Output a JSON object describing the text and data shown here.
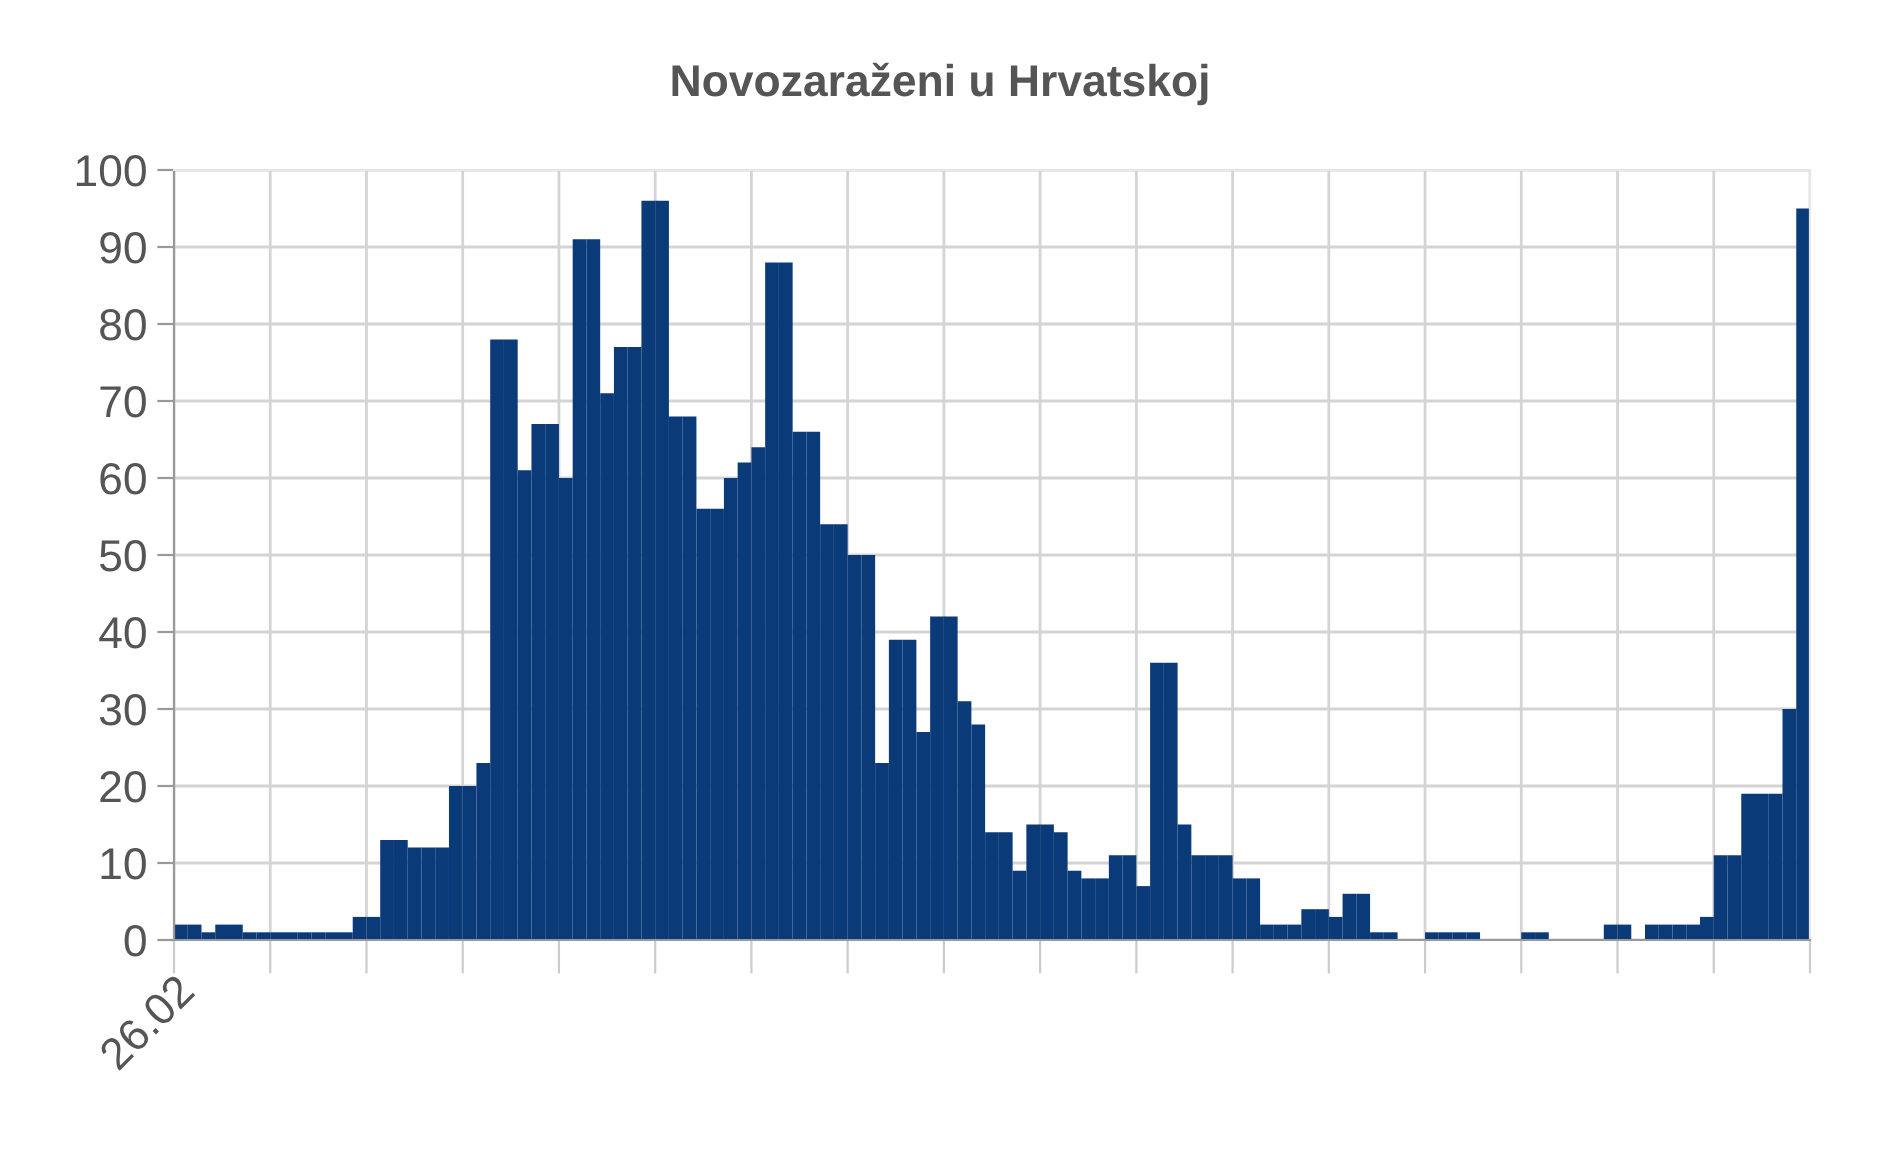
{
  "chart_data": {
    "type": "bar",
    "title": "Novozaraženi u Hrvatskoj",
    "categories": [
      "26.02",
      null,
      null,
      null,
      null,
      null,
      null,
      null,
      null,
      null,
      null,
      null,
      null,
      null,
      null,
      null,
      null,
      null,
      null,
      null,
      null,
      null,
      null,
      null,
      null,
      null,
      null,
      null,
      null,
      null,
      null,
      null,
      null,
      null,
      null,
      null,
      null,
      null,
      null,
      null,
      null,
      null,
      null,
      null,
      null,
      null,
      null,
      null,
      null,
      null,
      null,
      null,
      null,
      null,
      null,
      null,
      null,
      null,
      null,
      null,
      null,
      null,
      null,
      null,
      null,
      null,
      null,
      null,
      null,
      null,
      null,
      null,
      null,
      null,
      null,
      null,
      null,
      null,
      null,
      null,
      null,
      null,
      null,
      null,
      null,
      null,
      null,
      null,
      null,
      null,
      null,
      null,
      null,
      null,
      null,
      null,
      null,
      null,
      null,
      null,
      null,
      null,
      null,
      null,
      null,
      null,
      null,
      null,
      null,
      null,
      null,
      null,
      null,
      null,
      null,
      null,
      null,
      null,
      null
    ],
    "values": [
      2,
      2,
      1,
      2,
      2,
      1,
      1,
      1,
      1,
      1,
      1,
      1,
      1,
      3,
      3,
      13,
      13,
      12,
      12,
      12,
      20,
      20,
      23,
      78,
      78,
      61,
      67,
      67,
      60,
      91,
      91,
      71,
      77,
      77,
      96,
      96,
      68,
      68,
      56,
      56,
      60,
      62,
      64,
      88,
      88,
      66,
      66,
      54,
      54,
      50,
      50,
      23,
      39,
      39,
      27,
      42,
      42,
      31,
      28,
      14,
      14,
      9,
      15,
      15,
      14,
      9,
      8,
      8,
      11,
      11,
      7,
      36,
      36,
      15,
      11,
      11,
      11,
      8,
      8,
      2,
      2,
      2,
      4,
      4,
      3,
      6,
      6,
      1,
      1,
      0,
      0,
      1,
      1,
      1,
      1,
      0,
      0,
      0,
      1,
      1,
      0,
      0,
      0,
      0,
      2,
      2,
      0,
      2,
      2,
      2,
      2,
      3,
      11,
      11,
      19,
      19,
      19,
      30,
      95
    ],
    "color": "#0b3a78",
    "ylim": [
      0,
      100
    ],
    "yticks": [
      0,
      10,
      20,
      30,
      40,
      50,
      60,
      70,
      80,
      90,
      100
    ],
    "grid": true
  }
}
